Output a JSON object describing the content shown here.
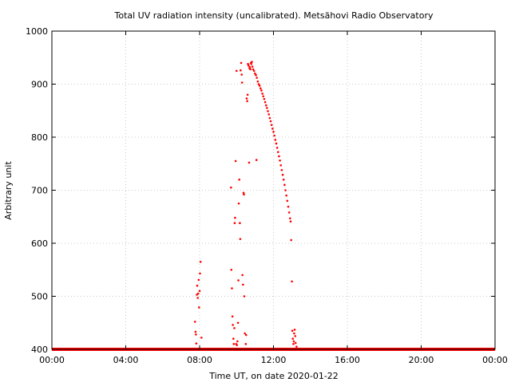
{
  "chart_data": {
    "type": "scatter",
    "title": "Total UV radiation intensity (uncalibrated). Metsähovi Radio Observatory",
    "xlabel": "Time UT, on date 2020-01-22",
    "ylabel": "Arbitrary unit",
    "x_unit": "hours UT",
    "xlim": [
      0,
      24
    ],
    "ylim": [
      400,
      1000
    ],
    "x_ticks": [
      {
        "value": 0,
        "label": "00:00"
      },
      {
        "value": 4,
        "label": "04:00"
      },
      {
        "value": 8,
        "label": "08:00"
      },
      {
        "value": 12,
        "label": "12:00"
      },
      {
        "value": 16,
        "label": "16:00"
      },
      {
        "value": 20,
        "label": "20:00"
      },
      {
        "value": 24,
        "label": "00:00"
      }
    ],
    "y_ticks": [
      {
        "value": 400,
        "label": "400"
      },
      {
        "value": 500,
        "label": "500"
      },
      {
        "value": 600,
        "label": "600"
      },
      {
        "value": 700,
        "label": "700"
      },
      {
        "value": 800,
        "label": "800"
      },
      {
        "value": 900,
        "label": "900"
      },
      {
        "value": 1000,
        "label": "1000"
      }
    ],
    "grid": true,
    "legend": false,
    "series": [
      {
        "color": "#ff0000",
        "baseline": {
          "value": 400,
          "from": 0,
          "to": 24
        },
        "points": [
          [
            7.75,
            452
          ],
          [
            7.78,
            433
          ],
          [
            7.8,
            428
          ],
          [
            7.82,
            411
          ],
          [
            7.85,
            503
          ],
          [
            7.87,
            520
          ],
          [
            7.9,
            497
          ],
          [
            7.92,
            505
          ],
          [
            7.95,
            531
          ],
          [
            7.97,
            479
          ],
          [
            8.0,
            510
          ],
          [
            8.02,
            543
          ],
          [
            8.05,
            565
          ],
          [
            8.1,
            422
          ],
          [
            9.7,
            705
          ],
          [
            9.72,
            550
          ],
          [
            9.75,
            515
          ],
          [
            9.78,
            462
          ],
          [
            9.8,
            446
          ],
          [
            9.83,
            420
          ],
          [
            9.85,
            410
          ],
          [
            9.88,
            440
          ],
          [
            9.9,
            638
          ],
          [
            9.92,
            648
          ],
          [
            9.95,
            755
          ],
          [
            9.98,
            410
          ],
          [
            10.0,
            925
          ],
          [
            10.02,
            408
          ],
          [
            10.05,
            415
          ],
          [
            10.08,
            450
          ],
          [
            10.1,
            530
          ],
          [
            10.12,
            675
          ],
          [
            10.15,
            720
          ],
          [
            10.18,
            638
          ],
          [
            10.2,
            608
          ],
          [
            10.22,
            926
          ],
          [
            10.25,
            940
          ],
          [
            10.28,
            918
          ],
          [
            10.3,
            903
          ],
          [
            10.32,
            540
          ],
          [
            10.35,
            522
          ],
          [
            10.38,
            695
          ],
          [
            10.4,
            692
          ],
          [
            10.42,
            500
          ],
          [
            10.45,
            430
          ],
          [
            10.5,
            410
          ],
          [
            10.52,
            427
          ],
          [
            10.55,
            873
          ],
          [
            10.58,
            868
          ],
          [
            10.6,
            880
          ],
          [
            10.62,
            938
          ],
          [
            10.65,
            935
          ],
          [
            10.68,
            752
          ],
          [
            10.7,
            930
          ],
          [
            10.72,
            932
          ],
          [
            10.75,
            928
          ],
          [
            10.78,
            940
          ],
          [
            10.8,
            938
          ],
          [
            10.83,
            942
          ],
          [
            10.86,
            933
          ],
          [
            10.9,
            928
          ],
          [
            10.95,
            925
          ],
          [
            11.0,
            920
          ],
          [
            11.05,
            917
          ],
          [
            11.08,
            757
          ],
          [
            11.1,
            912
          ],
          [
            11.15,
            905
          ],
          [
            11.2,
            900
          ],
          [
            11.25,
            897
          ],
          [
            11.3,
            892
          ],
          [
            11.35,
            888
          ],
          [
            11.4,
            882
          ],
          [
            11.45,
            877
          ],
          [
            11.5,
            872
          ],
          [
            11.55,
            866
          ],
          [
            11.6,
            860
          ],
          [
            11.65,
            855
          ],
          [
            11.7,
            849
          ],
          [
            11.75,
            843
          ],
          [
            11.8,
            836
          ],
          [
            11.85,
            830
          ],
          [
            11.9,
            823
          ],
          [
            11.95,
            816
          ],
          [
            12.0,
            810
          ],
          [
            12.05,
            803
          ],
          [
            12.1,
            795
          ],
          [
            12.15,
            788
          ],
          [
            12.2,
            780
          ],
          [
            12.25,
            772
          ],
          [
            12.3,
            764
          ],
          [
            12.35,
            756
          ],
          [
            12.4,
            747
          ],
          [
            12.45,
            738
          ],
          [
            12.5,
            729
          ],
          [
            12.55,
            720
          ],
          [
            12.6,
            710
          ],
          [
            12.65,
            700
          ],
          [
            12.7,
            690
          ],
          [
            12.75,
            680
          ],
          [
            12.8,
            669
          ],
          [
            12.85,
            658
          ],
          [
            12.9,
            647
          ],
          [
            12.93,
            641
          ],
          [
            12.96,
            606
          ],
          [
            13.0,
            528
          ],
          [
            13.02,
            435
          ],
          [
            13.05,
            420
          ],
          [
            13.08,
            410
          ],
          [
            13.1,
            415
          ],
          [
            13.12,
            430
          ],
          [
            13.15,
            437
          ],
          [
            13.18,
            425
          ],
          [
            13.2,
            412
          ],
          [
            13.25,
            405
          ]
        ]
      }
    ]
  }
}
